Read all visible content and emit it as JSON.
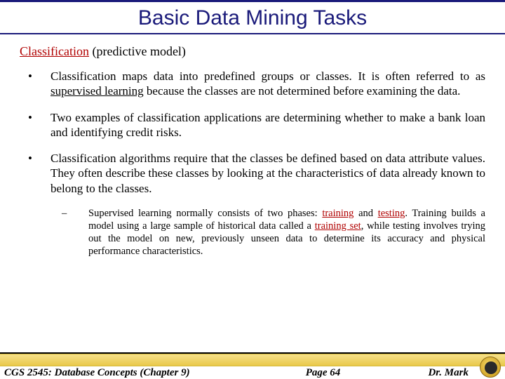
{
  "colors": {
    "title": "#1a1a7a",
    "accent_red": "#b00000",
    "rule": "#1a1a7a",
    "footer_band_top": "#f6e08a",
    "footer_band_bottom": "#e9c94a",
    "logo_outer_light": "#f5d96a",
    "logo_outer_dark": "#a67c1a",
    "logo_inner": "#2a2a2a"
  },
  "title": "Basic Data Mining Tasks",
  "section": {
    "label": "Classification",
    "paren": "(predictive model)"
  },
  "bullets": {
    "b1_a": "Classification maps data into predefined groups or classes.  It is often referred to as ",
    "b1_hl": "supervised learning",
    "b1_b": " because the classes are not determined before examining the data.",
    "b2": "Two examples of classification applications are determining whether to make a bank loan and identifying credit risks.",
    "b3": "Classification algorithms require that the classes be defined based on data attribute values.  They often describe these classes by looking at the characteristics of data already known to belong to the classes."
  },
  "sub": {
    "s1_a": "Supervised learning normally consists of two phases: ",
    "s1_hl1": "training",
    "s1_b": " and ",
    "s1_hl2": "testing",
    "s1_c": ". Training builds a model using a large sample of historical data called a ",
    "s1_hl3": "training set",
    "s1_d": ", while testing involves trying out the model on new, previously unseen data to determine its accuracy and physical performance characteristics."
  },
  "footer": {
    "left": "CGS 2545: Database Concepts  (Chapter 9)",
    "center": "Page 64",
    "right": "Dr. Mark"
  }
}
